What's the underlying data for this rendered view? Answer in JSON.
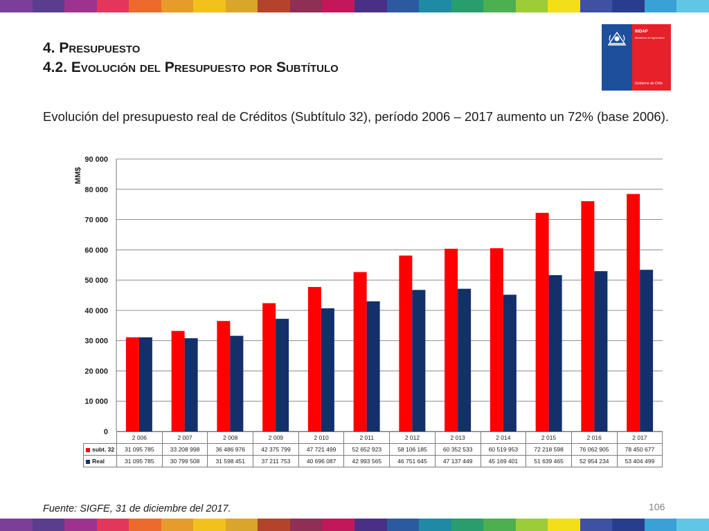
{
  "slide": {
    "title_line1": "4. Presupuesto",
    "title_line2": "4.2. Evolución del Presupuesto por Subtítulo",
    "description": "Evolución del presupuesto real de Créditos (Subtítulo 32), período 2006 – 2017 aumento un 72% (base 2006).",
    "source": "Fuente: SIGFE, 31 de diciembre del 2017.",
    "page_number": "106"
  },
  "logo": {
    "org": "INDAP",
    "ministry": "Ministerio de Agricultura",
    "government": "Gobierno de Chile"
  },
  "colors": {
    "stripe": [
      "#7b3f99",
      "#5a3d8f",
      "#a0328f",
      "#e4365a",
      "#ec6a2c",
      "#e79b2a",
      "#f3c11b",
      "#d9a52a",
      "#b5432b",
      "#8f2f55",
      "#c2185b",
      "#4a2f86",
      "#2c5aa0",
      "#1f8aa3",
      "#2a9d6e",
      "#4caf50",
      "#9ccc38",
      "#f2df17",
      "#3f51a5",
      "#283d8e",
      "#3aa0d8",
      "#5fc6e6"
    ],
    "subt32": "#ff0000",
    "real": "#13306b"
  },
  "chart_data": {
    "type": "bar",
    "categories": [
      "2 006",
      "2 007",
      "2 008",
      "2 009",
      "2 010",
      "2 011",
      "2 012",
      "2 013",
      "2 014",
      "2 015",
      "2 016",
      "2 017"
    ],
    "series": [
      {
        "name": "subt. 32",
        "values": [
          31095785,
          33208998,
          36486976,
          42375799,
          47721499,
          52652923,
          58106185,
          60352533,
          60519953,
          72218598,
          76062905,
          78450677
        ],
        "labels": [
          "31 095 785",
          "33 208 998",
          "36 486 976",
          "42 375 799",
          "47 721 499",
          "52 652 923",
          "58 106 185",
          "60 352 533",
          "60 519 953",
          "72 218 598",
          "76 062 905",
          "78 450 677"
        ]
      },
      {
        "name": "Real",
        "values": [
          31095785,
          30799508,
          31598451,
          37211753,
          40696087,
          42993565,
          46751645,
          47137449,
          45169401,
          51639465,
          52954234,
          53404499
        ],
        "labels": [
          "31 095 785",
          "30 799 508",
          "31 598 451",
          "37 211 753",
          "40 696 087",
          "42 993 565",
          "46 751 645",
          "47 137 449",
          "45 169 401",
          "51 639 465",
          "52 954 234",
          "53 404 499"
        ]
      }
    ],
    "ylabel": "MM$",
    "ylim": [
      0,
      90000
    ],
    "value_unit_divisor": 1000,
    "yticks": [
      0,
      10000,
      20000,
      30000,
      40000,
      50000,
      60000,
      70000,
      80000,
      90000
    ],
    "ytick_labels": [
      "0",
      "10 000",
      "20 000",
      "30 000",
      "40 000",
      "50 000",
      "60 000",
      "70 000",
      "80 000",
      "90 000"
    ],
    "grid": true,
    "legend": "data-table-below"
  }
}
